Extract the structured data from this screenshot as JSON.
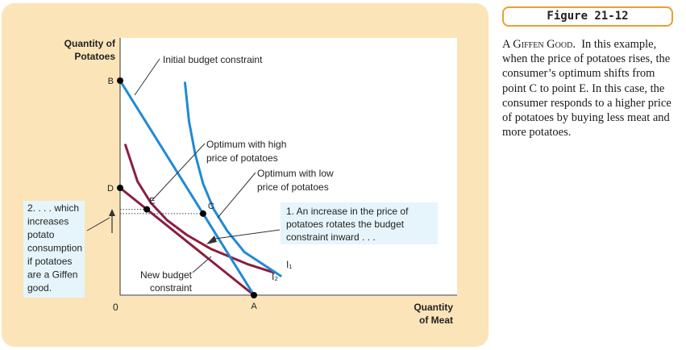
{
  "figure": {
    "label": "Figure 21-12",
    "caption_title": "A Giffen Good.",
    "caption_body": "In this example, when the price of potatoes rises, the consumer’s optimum shifts from point C to point E. In this case, the consumer responds to a higher price of potatoes by buying less meat and more potatoes."
  },
  "colors": {
    "panel": "#fbe4b8",
    "budget_initial": "#1e8ad6",
    "indifference_curves": "#8b1e3f",
    "callout_fill": "#e6f5fb",
    "badge_border": "#e8a030"
  },
  "chart_data": {
    "type": "line",
    "ylabel": [
      "Quantity of",
      "Potatoes"
    ],
    "xlabel": [
      "Quantity",
      "of Meat"
    ],
    "origin_label": "0",
    "grid": false,
    "series": [
      {
        "name": "Initial budget constraint",
        "x": [
          0,
          10
        ],
        "y": [
          10,
          0
        ]
      },
      {
        "name": "New budget constraint",
        "x": [
          0,
          10
        ],
        "y": [
          5,
          0
        ]
      },
      {
        "name": "I1",
        "x": [
          4.85,
          5.15,
          5.6,
          6.2,
          7.0,
          8.0,
          9.3,
          12.0
        ],
        "y": [
          9.9,
          8.1,
          6.6,
          5.2,
          4.0,
          3.0,
          2.0,
          0.9
        ]
      },
      {
        "name": "I2",
        "x": [
          0.4,
          1.3,
          2.3,
          3.5,
          5.0,
          6.8,
          9.5,
          11.5
        ],
        "y": [
          7.0,
          5.3,
          4.3,
          3.5,
          2.8,
          2.15,
          1.45,
          1.05
        ]
      }
    ],
    "points": [
      {
        "label": "B",
        "x": 0,
        "y": 10
      },
      {
        "label": "D",
        "x": 0,
        "y": 5
      },
      {
        "label": "A",
        "x": 10,
        "y": 0
      },
      {
        "label": "C",
        "x": 6.2,
        "y": 3.8
      },
      {
        "label": "E",
        "x": 2.0,
        "y": 4.0
      }
    ],
    "curve_labels": [
      "I₁",
      "I₂"
    ],
    "annotations": {
      "initial_budget": "Initial budget constraint",
      "new_budget": [
        "New budget",
        "constraint"
      ],
      "opt_high": [
        "Optimum with high",
        "price of potatoes"
      ],
      "opt_low": [
        "Optimum with low",
        "price of potatoes"
      ],
      "callout_right": [
        "1. An increase in the price of",
        "potatoes rotates the budget",
        "constraint inward . . ."
      ],
      "callout_left": [
        "2. . . . which",
        "increases",
        "potato",
        "consumption",
        "if potatoes",
        "are a Giffen",
        "good."
      ]
    }
  }
}
